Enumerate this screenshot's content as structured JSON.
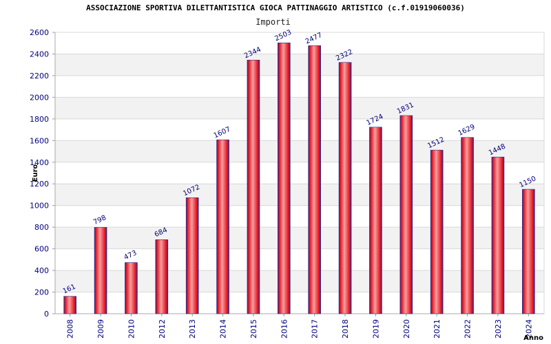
{
  "chart_data": {
    "type": "bar",
    "title": "ASSOCIAZIONE SPORTIVA DILETTANTISTICA GIOCA PATTINAGGIO ARTISTICO (c.f.01919060036)",
    "subtitle": "Importi",
    "xlabel": "Anno",
    "ylabel": "Euro",
    "categories": [
      "2008",
      "2009",
      "2010",
      "2012",
      "2013",
      "2014",
      "2015",
      "2016",
      "2017",
      "2018",
      "2019",
      "2020",
      "2021",
      "2022",
      "2023",
      "2024"
    ],
    "values": [
      161,
      798,
      473,
      684,
      1072,
      1607,
      2344,
      2503,
      2477,
      2322,
      1724,
      1831,
      1512,
      1629,
      1448,
      1150
    ],
    "ylim": [
      0,
      2600
    ],
    "yticks": [
      0,
      200,
      400,
      600,
      800,
      1000,
      1200,
      1400,
      1600,
      1800,
      2000,
      2200,
      2400,
      2600
    ],
    "grid": true,
    "colors": {
      "bar_center": "#f5a0a0",
      "bar_main": "#e8141e",
      "bar_edge": "#2a2a8a",
      "band": "#f2f2f2",
      "grid": "#d8d8d8",
      "axis_text": "#00007a"
    }
  }
}
